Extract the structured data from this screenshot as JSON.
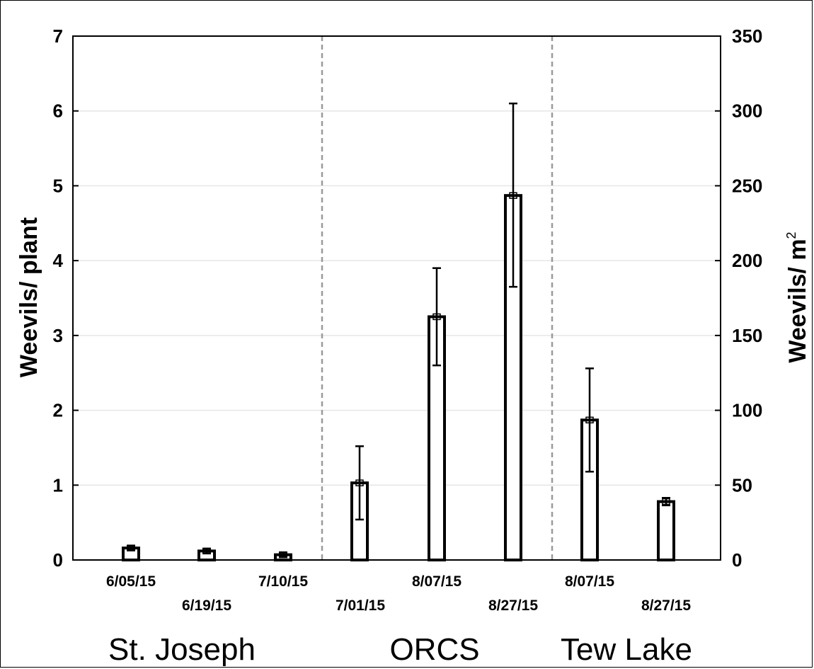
{
  "chart_data": {
    "type": "bar",
    "title": "",
    "ylabel": "Weevils/ plant",
    "y2label": "Weevils/ m",
    "y2label_superscript": "2",
    "ylim": [
      0,
      7
    ],
    "y2lim": [
      0,
      350
    ],
    "yticks": [
      "0",
      "1",
      "2",
      "3",
      "4",
      "5",
      "6",
      "7"
    ],
    "y2ticks": [
      "0",
      "50",
      "100",
      "150",
      "200",
      "250",
      "300",
      "350"
    ],
    "grid": true,
    "categories": [
      "6/05/15",
      "6/19/15",
      "7/10/15",
      "7/01/15",
      "8/07/15",
      "8/27/15",
      "8/07/15",
      "8/27/15"
    ],
    "values": [
      0.16,
      0.12,
      0.07,
      1.03,
      3.25,
      4.87,
      1.87,
      0.78
    ],
    "error_low": [
      0.13,
      0.09,
      0.04,
      0.54,
      2.6,
      3.65,
      1.18,
      0.73
    ],
    "error_high": [
      0.19,
      0.15,
      0.1,
      1.52,
      3.9,
      6.1,
      2.56,
      0.83
    ],
    "groups": [
      {
        "name": "St. Joseph",
        "indices": [
          0,
          1,
          2
        ]
      },
      {
        "name": "ORCS",
        "indices": [
          3,
          4,
          5
        ]
      },
      {
        "name": "Tew Lake",
        "indices": [
          6,
          7
        ]
      }
    ]
  }
}
